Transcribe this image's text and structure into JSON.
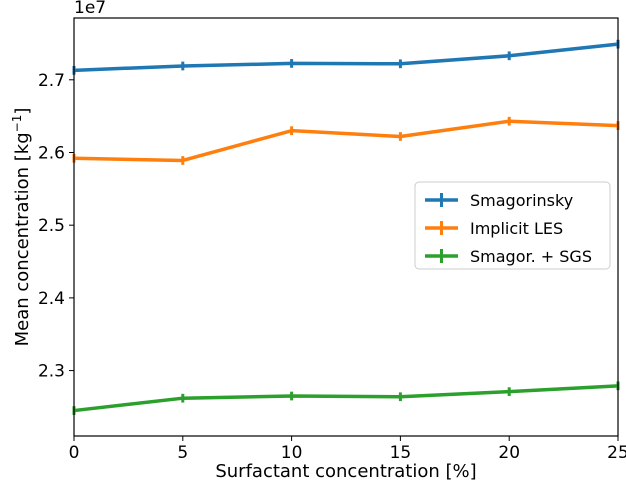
{
  "chart_data": {
    "type": "line",
    "x": [
      0,
      5,
      10,
      15,
      20,
      25
    ],
    "series": [
      {
        "name": "Smagorinsky",
        "color": "#1f77b4",
        "values": [
          2.713,
          2.719,
          2.7225,
          2.722,
          2.733,
          2.749
        ]
      },
      {
        "name": "Implicit LES",
        "color": "#ff7f0e",
        "values": [
          2.592,
          2.589,
          2.63,
          2.622,
          2.643,
          2.637
        ]
      },
      {
        "name": "Smagor. + SGS",
        "color": "#2ca02c",
        "values": [
          2.245,
          2.262,
          2.265,
          2.264,
          2.271,
          2.279
        ]
      }
    ],
    "error": [
      0.006,
      0.006,
      0.006,
      0.006,
      0.006,
      0.006
    ],
    "xlim": [
      0,
      25
    ],
    "ylim": [
      2.21,
      2.785
    ],
    "xticks": [
      0,
      5,
      10,
      15,
      20,
      25
    ],
    "yticks": [
      2.3,
      2.4,
      2.5,
      2.6,
      2.7
    ],
    "xlabel": "Surfactant concentration [%]",
    "ylabel_main": "Mean concentration [kg",
    "ylabel_sup": "−1",
    "ylabel_end": "]",
    "offset_text": "1e7",
    "legend_position": "center-right",
    "grid": false
  }
}
